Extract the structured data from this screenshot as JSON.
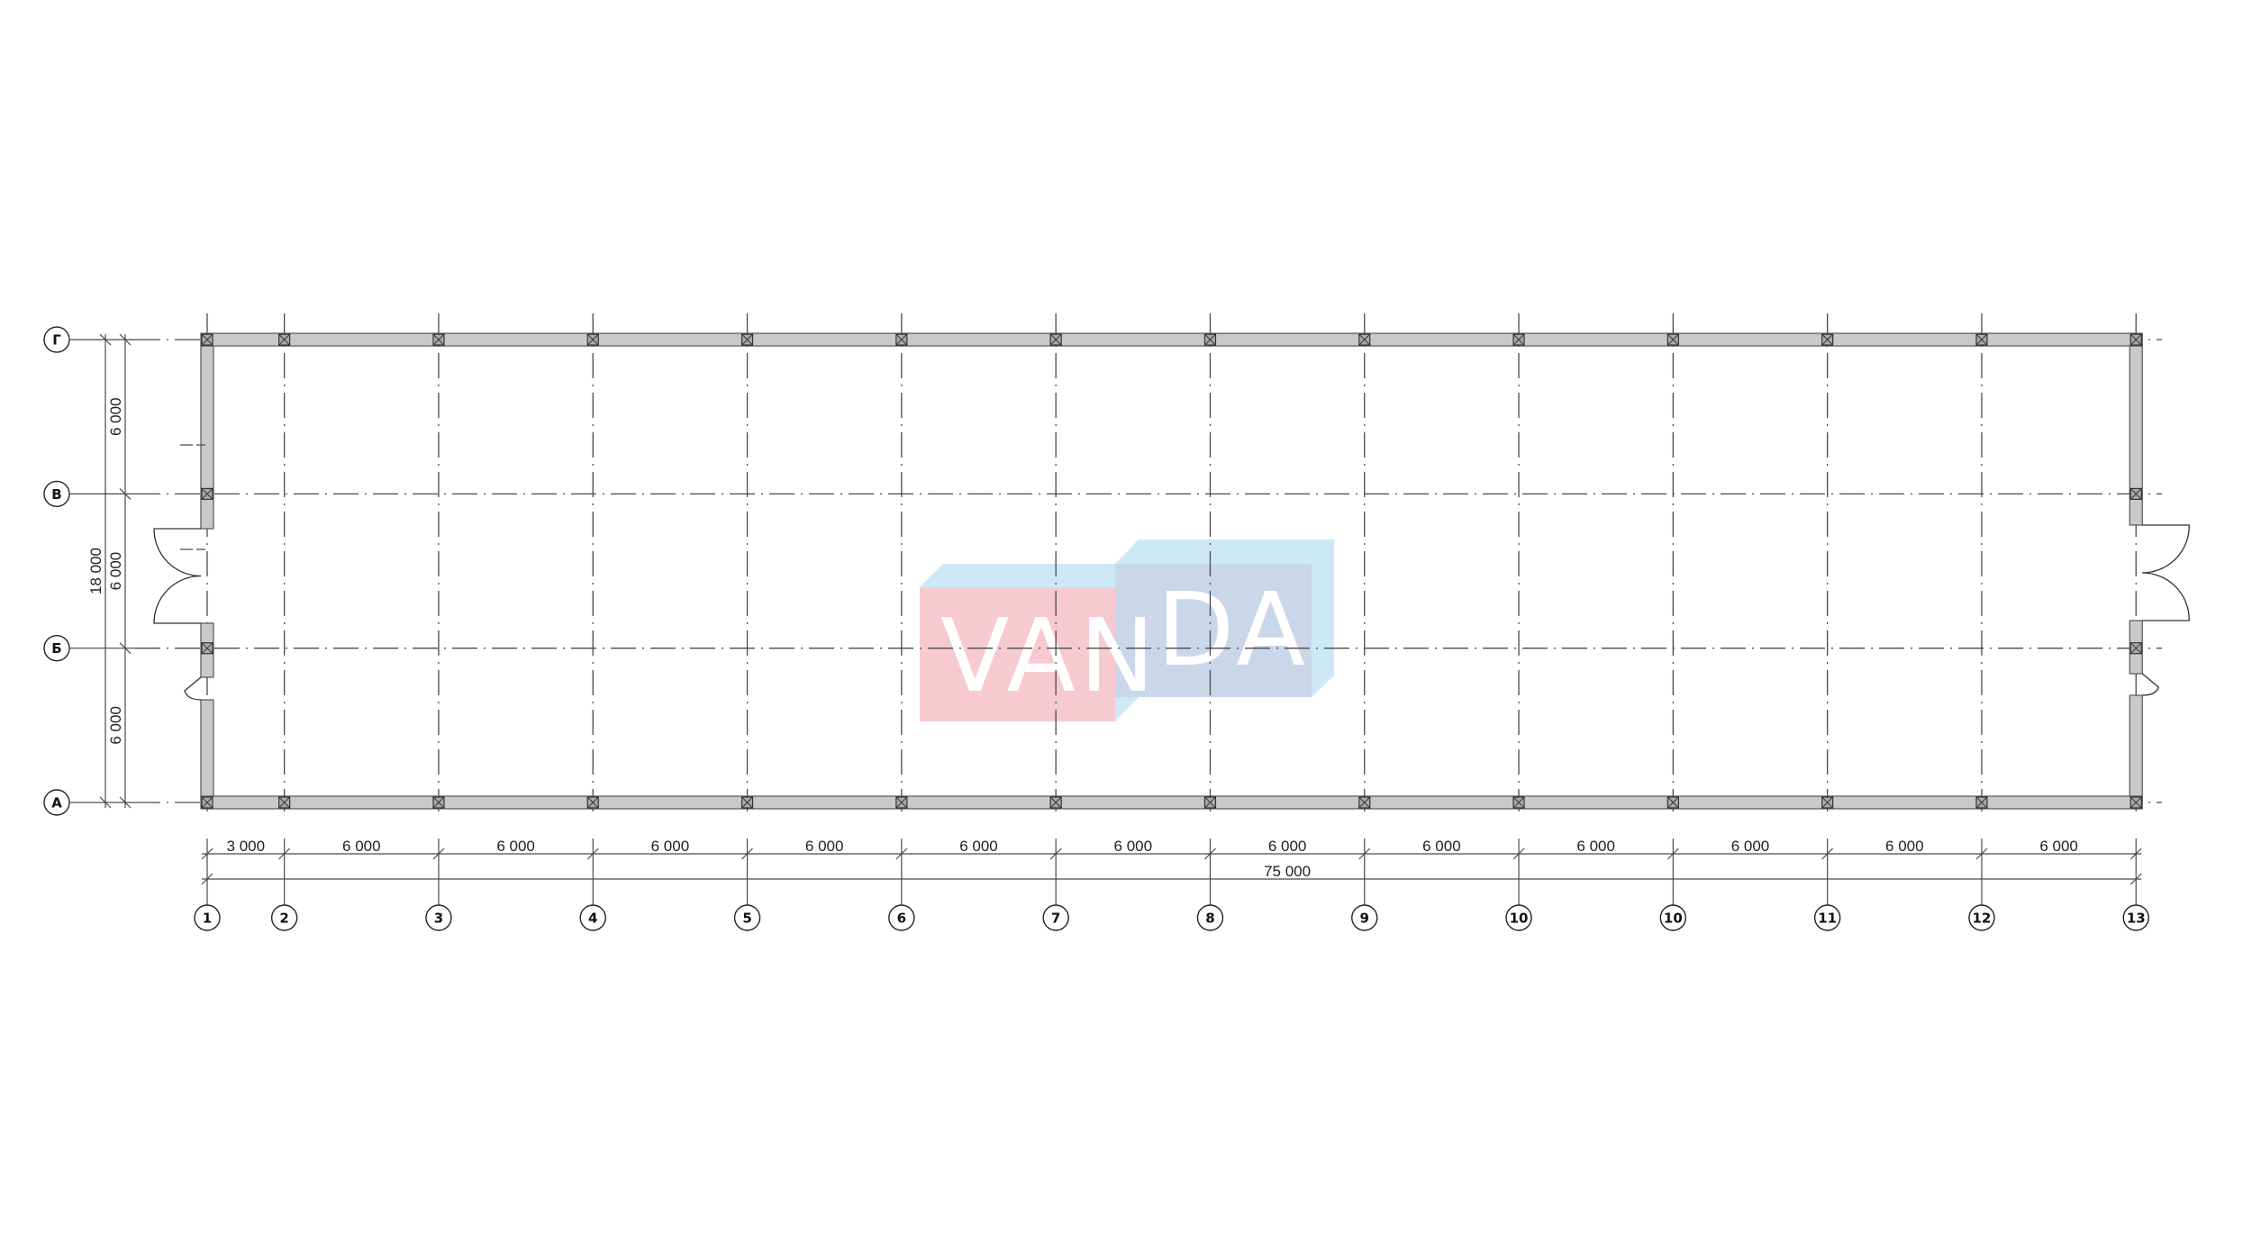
{
  "drawing": {
    "column_axes": [
      "1",
      "2",
      "3",
      "4",
      "5",
      "6",
      "7",
      "8",
      "9",
      "10",
      "10",
      "11",
      "12",
      "13"
    ],
    "column_spacings": [
      "3 000",
      "6 000",
      "6 000",
      "6 000",
      "6 000",
      "6 000",
      "6 000",
      "6 000",
      "6 000",
      "6 000",
      "6 000",
      "6 000",
      "6 000"
    ],
    "total_length": "75 000",
    "row_axes": [
      "А",
      "Б",
      "В",
      "Г"
    ],
    "row_spacings": [
      "6 000",
      "6 000",
      "6 000"
    ],
    "total_width": "18 000",
    "colors": {
      "wall": "#c9c9c9",
      "line": "#4a4a4a"
    }
  },
  "logo": {
    "text": "VANDA",
    "text_left": "VAN",
    "text_right": "DA",
    "colors": {
      "pink": "#f7cad2",
      "light_blue": "#cde9f6",
      "overlap_blue": "#c9d7e9"
    }
  }
}
